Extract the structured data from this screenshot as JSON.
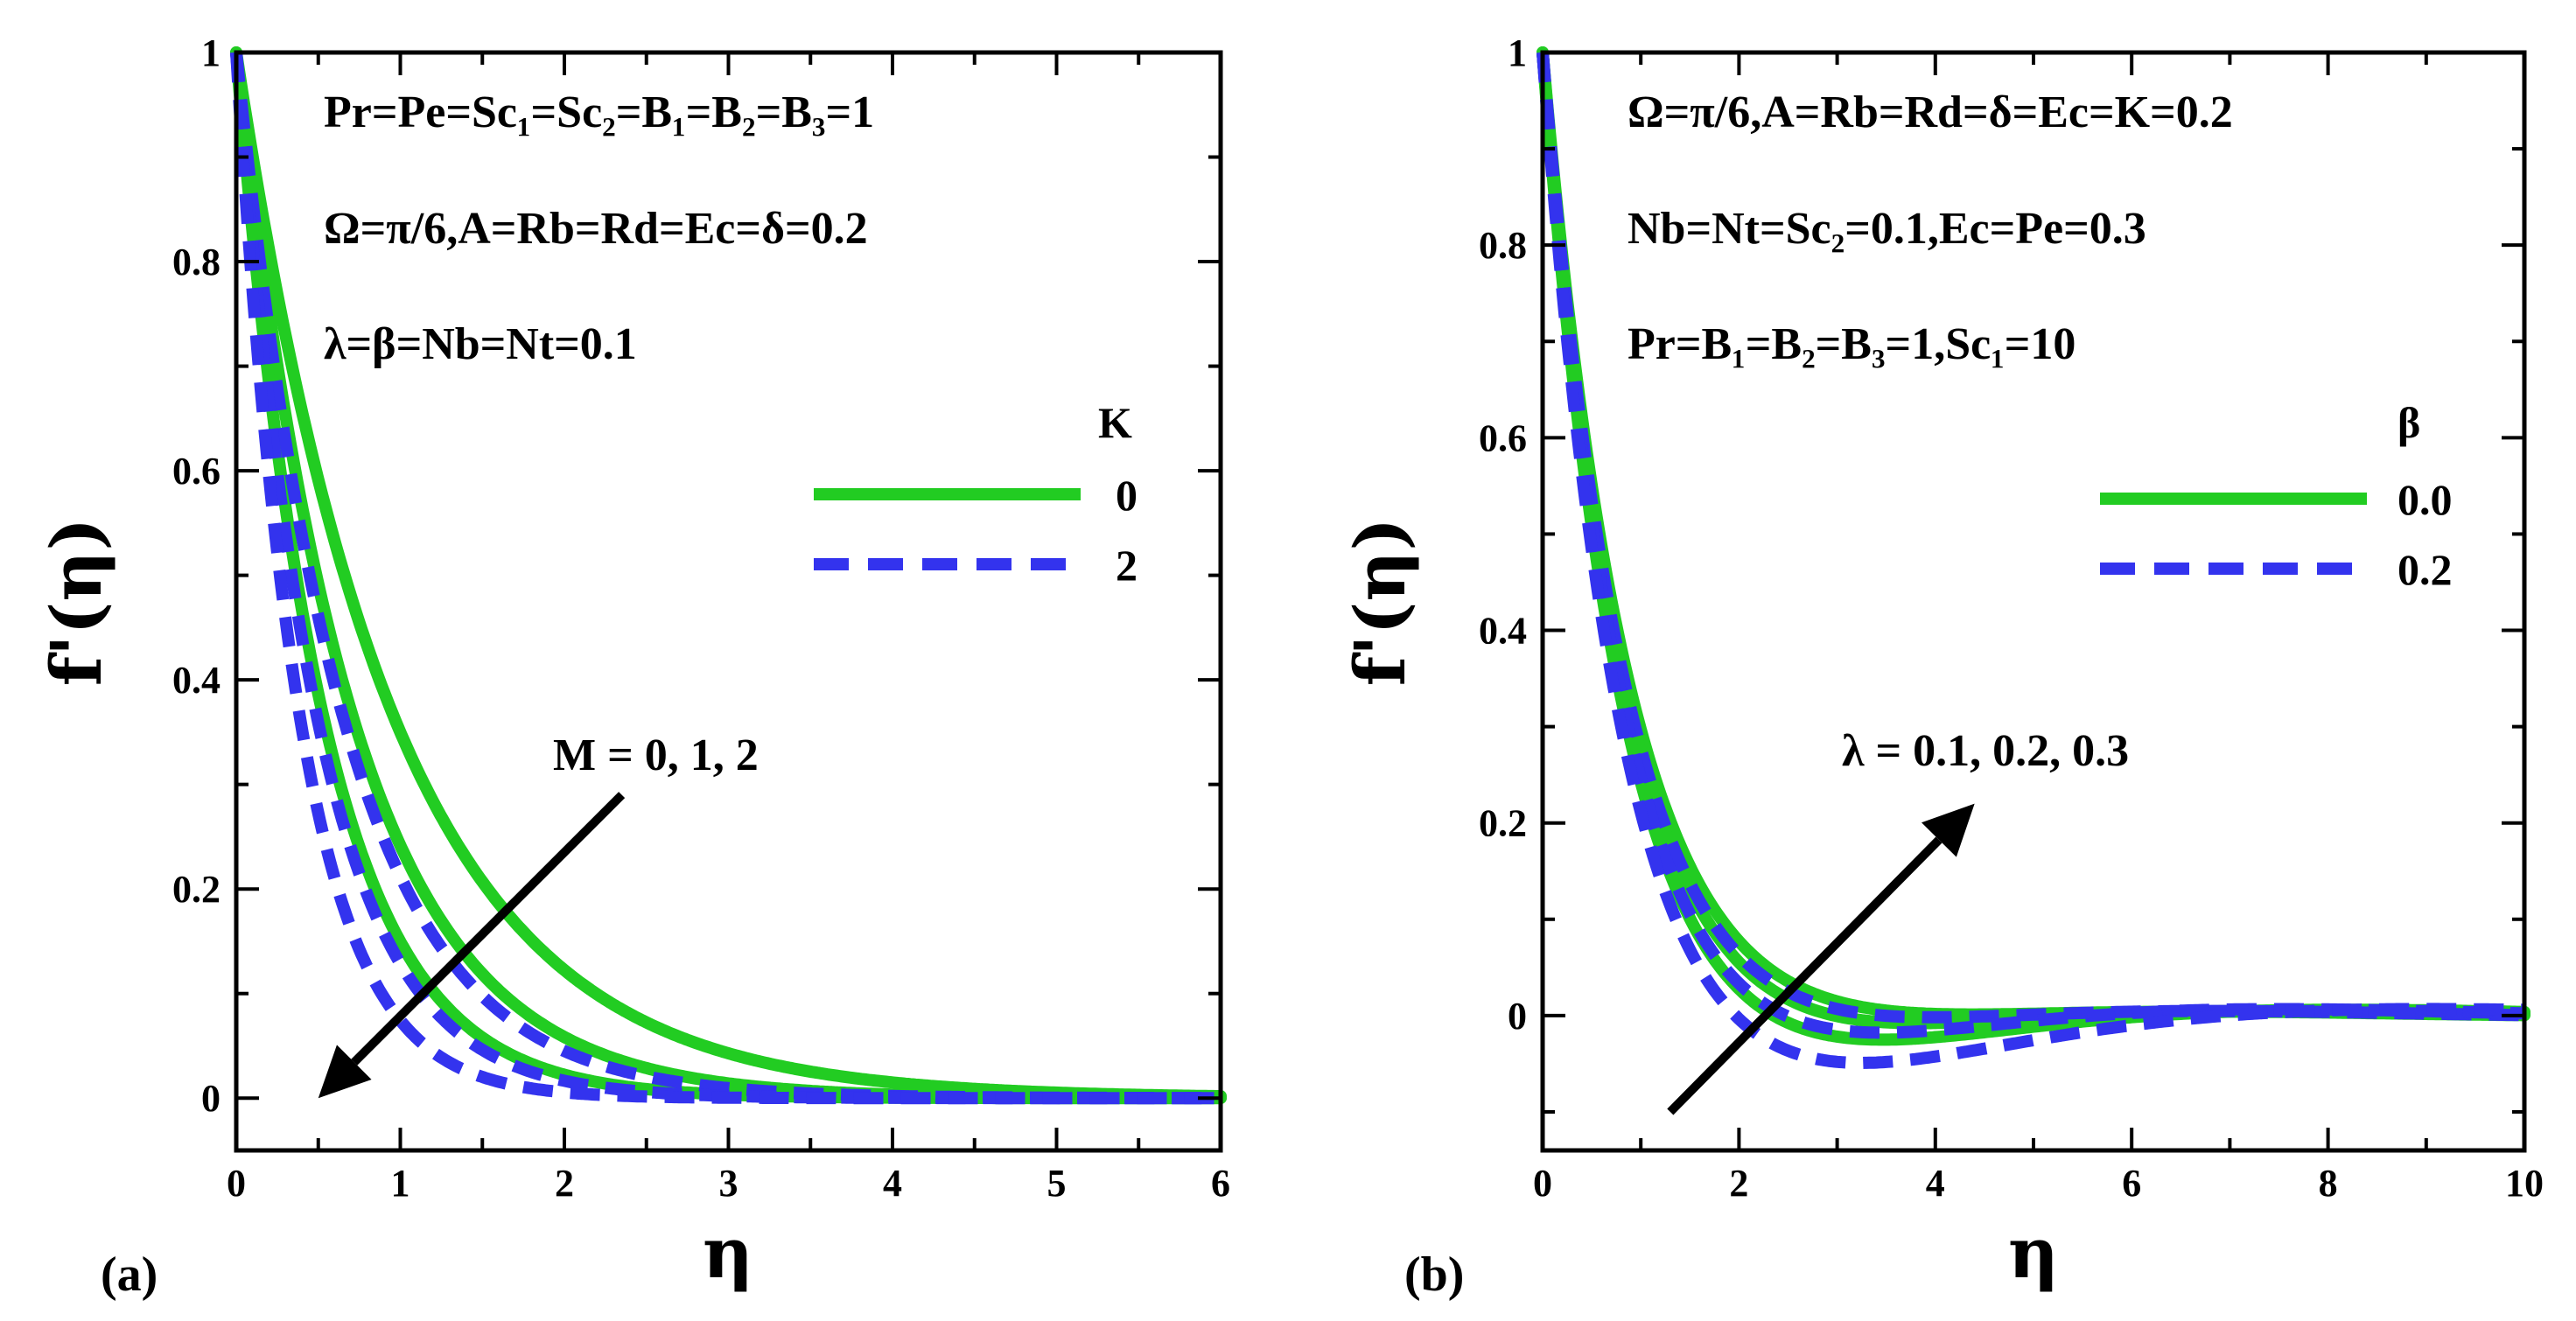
{
  "chart_data": [
    {
      "type": "line",
      "panel_label": "(a)",
      "xlabel": "η",
      "ylabel": "f'(η)",
      "xlim": [
        0,
        6
      ],
      "ylim": [
        -0.05,
        1
      ],
      "xticks": [
        0,
        1,
        2,
        3,
        4,
        5,
        6
      ],
      "yticks": [
        0,
        0.2,
        0.4,
        0.6,
        0.8,
        1
      ],
      "annotations": [
        "Pr=Pe=Sc₁=Sc₂=B₁=B₂=B₃=1",
        "Ω=π/6,A=Rb=Rd=Ec=δ=0.2",
        "λ=β=Nb=Nt=0.1"
      ],
      "arrow_label": "M = 0, 1, 2",
      "arrow_from": [
        2.35,
        0.29
      ],
      "arrow_to": [
        0.5,
        0.0
      ],
      "legend_title": "K",
      "legend": [
        {
          "label": "0",
          "color": "#22cc22",
          "style": "solid"
        },
        {
          "label": "2",
          "color": "#3333ee",
          "style": "dashed"
        }
      ],
      "series": [
        {
          "name": "K=0, M=0",
          "legend": "0",
          "model": "exp",
          "a": 1.0,
          "k": 1.05,
          "x_max": 6
        },
        {
          "name": "K=0, M=1",
          "legend": "0",
          "model": "exp",
          "a": 1.0,
          "k": 1.42,
          "x_max": 6
        },
        {
          "name": "K=0, M=2",
          "legend": "0",
          "model": "exp",
          "a": 1.0,
          "k": 1.9,
          "x_max": 6
        },
        {
          "name": "K=2, M=0",
          "legend": "2",
          "model": "exp",
          "a": 1.0,
          "k": 1.55,
          "x_max": 6
        },
        {
          "name": "K=2, M=1",
          "legend": "2",
          "model": "exp",
          "a": 1.0,
          "k": 2.05,
          "x_max": 6
        },
        {
          "name": "K=2, M=2",
          "legend": "2",
          "model": "exp",
          "a": 1.0,
          "k": 2.6,
          "x_max": 6
        }
      ]
    },
    {
      "type": "line",
      "panel_label": "(b)",
      "xlabel": "η",
      "ylabel": "f'(η)",
      "xlim": [
        0,
        10
      ],
      "ylim": [
        -0.14,
        1
      ],
      "xticks": [
        0,
        2,
        4,
        6,
        8,
        10
      ],
      "yticks": [
        0,
        0.2,
        0.4,
        0.6,
        0.8,
        1
      ],
      "annotations": [
        "Ω=π/6,A=Rb=Rd=δ=Ec=K=0.2",
        "Nb=Nt=Sc₂=0.1,Ec=Pe=0.3",
        "Pr=B₁=B₂=B₃=1,Sc₁=10"
      ],
      "arrow_label": "λ = 0.1, 0.2, 0.3",
      "arrow_from": [
        1.3,
        -0.1
      ],
      "arrow_to": [
        4.4,
        0.22
      ],
      "legend_title": "β",
      "legend": [
        {
          "label": "0.0",
          "color": "#22cc22",
          "style": "solid"
        },
        {
          "label": "0.2",
          "color": "#3333ee",
          "style": "dashed"
        }
      ],
      "series": [
        {
          "name": "β=0.0, λ=0.1",
          "legend": "0.0",
          "model": "osc",
          "k": 1.15,
          "c": 0.05,
          "w": 0.6,
          "x_max": 10
        },
        {
          "name": "β=0.0, λ=0.2",
          "legend": "0.0",
          "model": "osc",
          "k": 1.2,
          "c": 0.08,
          "w": 0.55,
          "x_max": 10
        },
        {
          "name": "β=0.0, λ=0.3",
          "legend": "0.0",
          "model": "osc",
          "k": 1.25,
          "c": 0.13,
          "w": 0.5,
          "x_max": 10
        },
        {
          "name": "β=0.2, λ=0.1",
          "legend": "0.2",
          "model": "osc",
          "k": 1.2,
          "c": 0.06,
          "w": 0.6,
          "x_max": 10
        },
        {
          "name": "β=0.2, λ=0.2",
          "legend": "0.2",
          "model": "osc",
          "k": 1.25,
          "c": 0.11,
          "w": 0.55,
          "x_max": 10
        },
        {
          "name": "β=0.2, λ=0.3",
          "legend": "0.2",
          "model": "osc",
          "k": 1.3,
          "c": 0.2,
          "w": 0.45,
          "x_max": 10
        }
      ]
    }
  ]
}
